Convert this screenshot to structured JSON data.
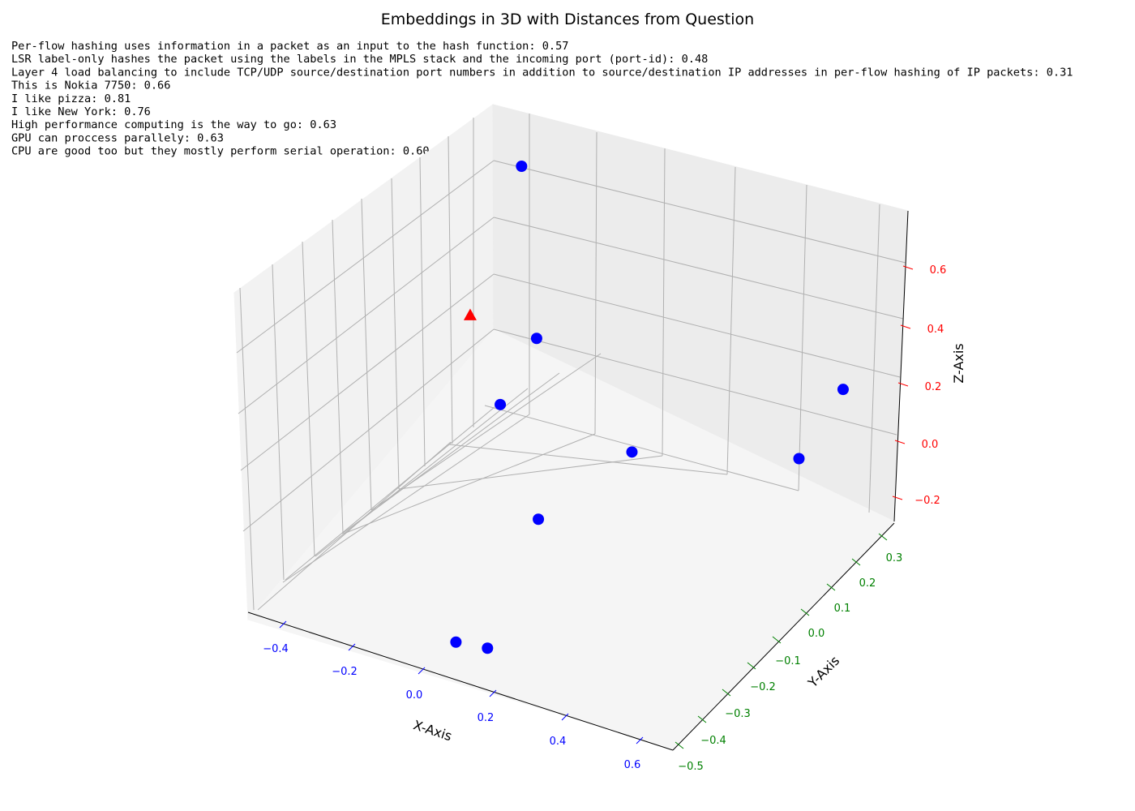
{
  "chart_data": {
    "type": "scatter",
    "projection": "3d",
    "title": "Embeddings in 3D with Distances from Question",
    "xlabel": "X-Axis",
    "ylabel": "Y-Axis",
    "zlabel": "Z-Axis",
    "grid": true,
    "xticks": [
      "−0.4",
      "−0.2",
      "0.0",
      "0.2",
      "0.4",
      "0.6"
    ],
    "yticks": [
      "−0.5",
      "−0.4",
      "−0.3",
      "−0.2",
      "−0.1",
      "0.0",
      "0.1",
      "0.2",
      "0.3"
    ],
    "zticks": [
      "−0.2",
      "0.0",
      "0.2",
      "0.4",
      "0.6"
    ],
    "tick_colors": {
      "x": "#0000ff",
      "y": "#008000",
      "z": "#ff0000"
    },
    "annotations": [
      "Per-flow hashing uses information in a packet as an input to the hash function: 0.57",
      "LSR label-only hashes the packet using the labels in the MPLS stack and the incoming port (port-id): 0.48",
      "Layer 4 load balancing to include TCP/UDP source/destination port numbers in addition to source/destination IP addresses in per-flow hashing of IP packets: 0.31",
      "This is Nokia 7750: 0.66",
      "I like pizza: 0.81",
      "I like New York: 0.76",
      "High performance computing is the way to go: 0.63",
      "GPU can proccess parallely: 0.63",
      "CPU are good too but they mostly perform serial operation: 0.60"
    ],
    "series": [
      {
        "marker": "circle",
        "color": "#0000ff",
        "points": [
          {
            "x": -0.35,
            "y": 0.3,
            "z": 0.55
          },
          {
            "x": -0.05,
            "y": -0.03,
            "z": 0.4
          },
          {
            "x": -0.02,
            "y": -0.2,
            "z": 0.35
          },
          {
            "x": 0.18,
            "y": 0.02,
            "z": 0.05
          },
          {
            "x": 0.15,
            "y": -0.28,
            "z": 0.1
          },
          {
            "x": 0.62,
            "y": 0.22,
            "z": 0.25
          },
          {
            "x": 0.55,
            "y": 0.15,
            "z": 0.05
          },
          {
            "x": 0.05,
            "y": -0.45,
            "z": -0.2
          },
          {
            "x": 0.1,
            "y": -0.4,
            "z": -0.25
          }
        ]
      },
      {
        "marker": "triangle",
        "color": "#ff0000",
        "points": [
          {
            "x": -0.3,
            "y": 0.05,
            "z": 0.3
          }
        ]
      }
    ]
  }
}
